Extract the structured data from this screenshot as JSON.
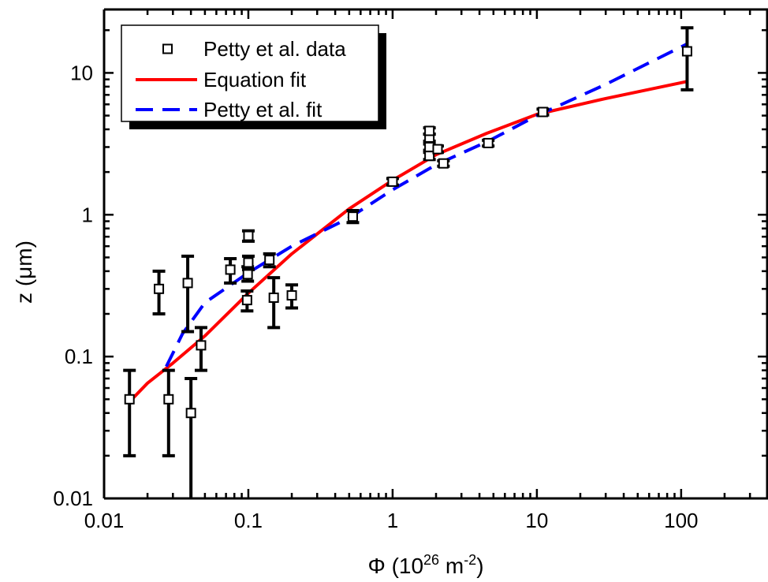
{
  "chart_data": {
    "type": "scatter",
    "xlabel": "Φ (10²⁶ m⁻²)",
    "xlabel_parts": {
      "symbol": "Φ (10",
      "exp": "26",
      "unit": " m",
      "unit_exp": "-2",
      "close": ")"
    },
    "ylabel": "z (μm)",
    "x_scale": "log",
    "y_scale": "log",
    "xlim": [
      0.01,
      400
    ],
    "ylim": [
      0.01,
      28
    ],
    "x_ticks": [
      {
        "value": 0.01,
        "label": "0.01"
      },
      {
        "value": 0.1,
        "label": "0.1"
      },
      {
        "value": 1,
        "label": "1"
      },
      {
        "value": 10,
        "label": "10"
      },
      {
        "value": 100,
        "label": "100"
      }
    ],
    "y_ticks": [
      {
        "value": 0.01,
        "label": "0.01"
      },
      {
        "value": 0.1,
        "label": "0.1"
      },
      {
        "value": 1,
        "label": "1"
      },
      {
        "value": 10,
        "label": "10"
      }
    ],
    "grid": false,
    "legend_position": "top-left",
    "series": [
      {
        "name": "Petty et al. data",
        "kind": "points-with-error",
        "color": "#000000",
        "points": [
          {
            "x": 0.015,
            "y": 0.05,
            "ylo": 0.02,
            "yhi": 0.08
          },
          {
            "x": 0.024,
            "y": 0.3,
            "ylo": 0.2,
            "yhi": 0.4
          },
          {
            "x": 0.028,
            "y": 0.05,
            "ylo": 0.02,
            "yhi": 0.08
          },
          {
            "x": 0.038,
            "y": 0.33,
            "ylo": 0.15,
            "yhi": 0.51
          },
          {
            "x": 0.04,
            "y": 0.04,
            "ylo": 0.01,
            "yhi": 0.07
          },
          {
            "x": 0.047,
            "y": 0.12,
            "ylo": 0.08,
            "yhi": 0.16
          },
          {
            "x": 0.075,
            "y": 0.41,
            "ylo": 0.33,
            "yhi": 0.49
          },
          {
            "x": 0.098,
            "y": 0.25,
            "ylo": 0.21,
            "yhi": 0.29
          },
          {
            "x": 0.099,
            "y": 0.38,
            "ylo": 0.34,
            "yhi": 0.43
          },
          {
            "x": 0.1,
            "y": 0.46,
            "ylo": 0.41,
            "yhi": 0.51
          },
          {
            "x": 0.1,
            "y": 0.71,
            "ylo": 0.65,
            "yhi": 0.77
          },
          {
            "x": 0.14,
            "y": 0.48,
            "ylo": 0.43,
            "yhi": 0.53
          },
          {
            "x": 0.15,
            "y": 0.26,
            "ylo": 0.16,
            "yhi": 0.36
          },
          {
            "x": 0.2,
            "y": 0.27,
            "ylo": 0.22,
            "yhi": 0.32
          },
          {
            "x": 0.53,
            "y": 0.97,
            "ylo": 0.88,
            "yhi": 1.07
          },
          {
            "x": 1.0,
            "y": 1.71,
            "ylo": 1.62,
            "yhi": 1.8
          },
          {
            "x": 1.8,
            "y": 2.6,
            "ylo": 2.45,
            "yhi": 2.75
          },
          {
            "x": 1.8,
            "y": 3.0,
            "ylo": 2.85,
            "yhi": 3.15
          },
          {
            "x": 1.8,
            "y": 3.5,
            "ylo": 3.3,
            "yhi": 3.7
          },
          {
            "x": 1.8,
            "y": 3.9,
            "ylo": 3.7,
            "yhi": 4.1
          },
          {
            "x": 2.05,
            "y": 2.9,
            "ylo": 2.75,
            "yhi": 3.05
          },
          {
            "x": 2.25,
            "y": 2.3,
            "ylo": 2.2,
            "yhi": 2.4
          },
          {
            "x": 4.6,
            "y": 3.2,
            "ylo": 3.05,
            "yhi": 3.35
          },
          {
            "x": 11,
            "y": 5.3,
            "ylo": 5.05,
            "yhi": 5.55
          },
          {
            "x": 110,
            "y": 14.2,
            "ylo": 7.6,
            "yhi": 20.8
          }
        ]
      },
      {
        "name": "Equation fit",
        "kind": "line",
        "color": "#ff0000",
        "dash": "solid",
        "x": [
          0.015,
          0.02,
          0.03,
          0.05,
          0.1,
          0.2,
          0.5,
          1,
          2,
          4.5,
          10,
          30,
          110
        ],
        "y": [
          0.048,
          0.065,
          0.09,
          0.14,
          0.28,
          0.53,
          1.1,
          1.75,
          2.65,
          3.75,
          5.1,
          6.6,
          8.7
        ]
      },
      {
        "name": "Petty et al. fit",
        "kind": "line",
        "color": "#0000ff",
        "dash": "dashed",
        "x": [
          0.027,
          0.035,
          0.05,
          0.1,
          0.2,
          0.5,
          1,
          2,
          4.6,
          10,
          30,
          110
        ],
        "y": [
          0.085,
          0.145,
          0.24,
          0.39,
          0.6,
          0.95,
          1.5,
          2.25,
          3.3,
          5.0,
          8.3,
          16.0
        ]
      }
    ]
  }
}
